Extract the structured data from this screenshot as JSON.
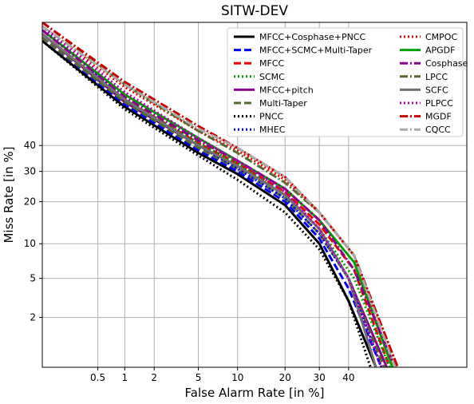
{
  "chart_data": {
    "type": "line",
    "title": "SITW-DEV",
    "xlabel": "False Alarm Rate [in %]",
    "ylabel": "Miss Rate [in %]",
    "scale": "normal-deviate (DET)",
    "xlim": [
      0.1,
      80
    ],
    "ylim": [
      0.5,
      85
    ],
    "grid": true,
    "legend_position": "top-right",
    "x_ticks": [
      "0.5",
      "1",
      "2",
      "5",
      "10",
      "20",
      "30",
      "40"
    ],
    "y_ticks": [
      "2",
      "5",
      "10",
      "20",
      "30",
      "40"
    ],
    "series": [
      {
        "name": "MFCC+Cosphase+PNCC",
        "color": "#000000",
        "dash": "solid",
        "points": [
          [
            0.1,
            80
          ],
          [
            1,
            56
          ],
          [
            5,
            37
          ],
          [
            10,
            29
          ],
          [
            20,
            19
          ],
          [
            30,
            10
          ],
          [
            40,
            3
          ],
          [
            50,
            0.5
          ]
        ]
      },
      {
        "name": "MFCC+SCMC+Multi-Taper",
        "color": "#0000ee",
        "dash": "dash",
        "points": [
          [
            0.1,
            81
          ],
          [
            1,
            57
          ],
          [
            5,
            38
          ],
          [
            10,
            30
          ],
          [
            20,
            20
          ],
          [
            30,
            11
          ],
          [
            40,
            4
          ],
          [
            52,
            0.5
          ]
        ]
      },
      {
        "name": "MFCC",
        "color": "#ee0000",
        "dash": "dash",
        "points": [
          [
            0.1,
            82
          ],
          [
            1,
            59
          ],
          [
            5,
            41
          ],
          [
            10,
            33
          ],
          [
            20,
            23
          ],
          [
            30,
            14
          ],
          [
            42,
            6
          ],
          [
            55,
            0.5
          ]
        ]
      },
      {
        "name": "SCMC",
        "color": "#00a000",
        "dash": "dot",
        "points": [
          [
            0.1,
            82
          ],
          [
            1,
            59
          ],
          [
            5,
            41
          ],
          [
            10,
            33
          ],
          [
            20,
            22
          ],
          [
            30,
            13
          ],
          [
            42,
            5
          ],
          [
            55,
            0.5
          ]
        ]
      },
      {
        "name": "MFCC+pitch",
        "color": "#8b008b",
        "dash": "solid",
        "points": [
          [
            0.1,
            82
          ],
          [
            1,
            58
          ],
          [
            5,
            40
          ],
          [
            10,
            32
          ],
          [
            20,
            22
          ],
          [
            30,
            13
          ],
          [
            40,
            5
          ],
          [
            54,
            0.5
          ]
        ]
      },
      {
        "name": "Multi-Taper",
        "color": "#556b2f",
        "dash": "dash",
        "points": [
          [
            0.1,
            81
          ],
          [
            1,
            58
          ],
          [
            5,
            39
          ],
          [
            10,
            31
          ],
          [
            20,
            21
          ],
          [
            30,
            12
          ],
          [
            40,
            5
          ],
          [
            53,
            0.5
          ]
        ]
      },
      {
        "name": "PNCC",
        "color": "#000000",
        "dash": "dot",
        "points": [
          [
            0.1,
            80
          ],
          [
            1,
            55
          ],
          [
            5,
            36
          ],
          [
            10,
            27
          ],
          [
            20,
            17
          ],
          [
            30,
            9
          ],
          [
            40,
            3
          ],
          [
            48,
            0.5
          ]
        ]
      },
      {
        "name": "MHEC",
        "color": "#0000ee",
        "dash": "dot",
        "points": [
          [
            0.1,
            84
          ],
          [
            1,
            59
          ],
          [
            5,
            40
          ],
          [
            10,
            31
          ],
          [
            20,
            21
          ],
          [
            30,
            12
          ],
          [
            40,
            5
          ],
          [
            52,
            0.5
          ]
        ]
      },
      {
        "name": "CMPOC",
        "color": "#ee0000",
        "dash": "dot",
        "points": [
          [
            0.1,
            84
          ],
          [
            1,
            64
          ],
          [
            5,
            46
          ],
          [
            10,
            38
          ],
          [
            20,
            27
          ],
          [
            30,
            17
          ],
          [
            42,
            8
          ],
          [
            56,
            0.5
          ]
        ]
      },
      {
        "name": "APGDF",
        "color": "#00a000",
        "dash": "solid",
        "points": [
          [
            0.1,
            83
          ],
          [
            1,
            61
          ],
          [
            5,
            43
          ],
          [
            10,
            34
          ],
          [
            20,
            24
          ],
          [
            30,
            15
          ],
          [
            42,
            7
          ],
          [
            56,
            0.5
          ]
        ]
      },
      {
        "name": "Cosphase",
        "color": "#8b008b",
        "dash": "dashdot",
        "points": [
          [
            0.1,
            83
          ],
          [
            1,
            60
          ],
          [
            5,
            42
          ],
          [
            10,
            34
          ],
          [
            20,
            24
          ],
          [
            30,
            15
          ],
          [
            42,
            6
          ],
          [
            57,
            0.5
          ]
        ]
      },
      {
        "name": "LPCC",
        "color": "#556b2f",
        "dash": "dashdot",
        "points": [
          [
            0.1,
            85
          ],
          [
            1,
            65
          ],
          [
            5,
            46
          ],
          [
            10,
            37
          ],
          [
            20,
            26
          ],
          [
            30,
            17
          ],
          [
            42,
            8
          ],
          [
            58,
            0.5
          ]
        ]
      },
      {
        "name": "SCFC",
        "color": "#707070",
        "dash": "solid",
        "points": [
          [
            0.1,
            82
          ],
          [
            1,
            59
          ],
          [
            5,
            40
          ],
          [
            10,
            32
          ],
          [
            20,
            22
          ],
          [
            30,
            13
          ],
          [
            40,
            5
          ],
          [
            50,
            0.5
          ]
        ]
      },
      {
        "name": "PLPCC",
        "color": "#b000b0",
        "dash": "dot",
        "points": [
          [
            0.1,
            84
          ],
          [
            1,
            62
          ],
          [
            5,
            43
          ],
          [
            10,
            34
          ],
          [
            20,
            23
          ],
          [
            30,
            13
          ],
          [
            40,
            5
          ],
          [
            52,
            0.5
          ]
        ]
      },
      {
        "name": "MGDF",
        "color": "#cc0000",
        "dash": "dashdot",
        "points": [
          [
            0.1,
            85
          ],
          [
            1,
            66
          ],
          [
            5,
            48
          ],
          [
            10,
            39
          ],
          [
            20,
            28
          ],
          [
            30,
            17
          ],
          [
            42,
            8
          ],
          [
            58,
            0.5
          ]
        ]
      },
      {
        "name": "CQCC",
        "color": "#aaaaaa",
        "dash": "dashdot",
        "points": [
          [
            0.1,
            84
          ],
          [
            1,
            65
          ],
          [
            5,
            47
          ],
          [
            10,
            39
          ],
          [
            20,
            28
          ],
          [
            30,
            17
          ],
          [
            42,
            8
          ],
          [
            57,
            0.5
          ]
        ]
      }
    ]
  }
}
